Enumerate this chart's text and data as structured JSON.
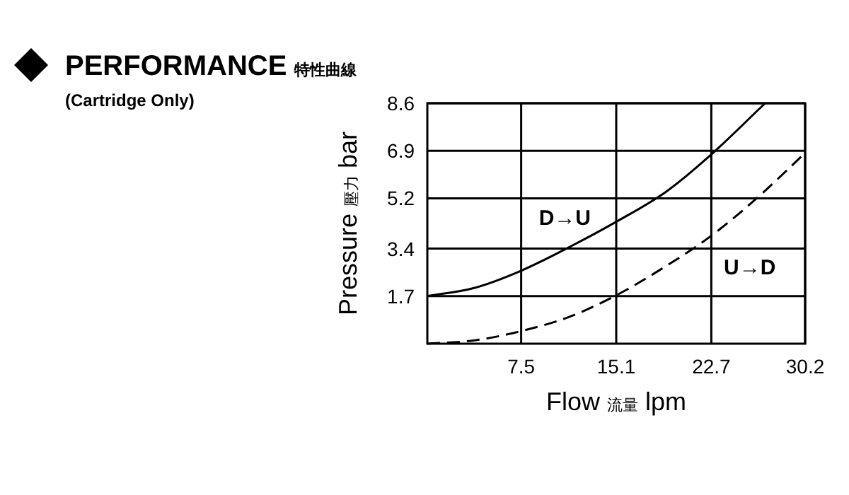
{
  "chart_data": {
    "type": "line",
    "title": "PERFORMANCE 特性曲線",
    "subtitle": "(Cartridge Only)",
    "xlabel": "Flow 流量 lpm",
    "ylabel": "Pressure 壓力 bar",
    "series": [
      {
        "name": "D→U",
        "color": "#000000",
        "line_style": "solid",
        "x": [
          0,
          3.8,
          7.5,
          11.5,
          15.1,
          19.1,
          22.7,
          27.0
        ],
        "values": [
          1.7,
          2.0,
          2.61,
          3.49,
          4.36,
          5.44,
          6.77,
          8.6
        ]
      },
      {
        "name": "U→D",
        "color": "#000000",
        "line_style": "dashed",
        "x": [
          0,
          3.8,
          7.5,
          11.3,
          15.1,
          19.1,
          22.7,
          26.5,
          30.2
        ],
        "values": [
          0,
          0.12,
          0.45,
          0.95,
          1.73,
          2.78,
          3.86,
          5.27,
          6.82
        ]
      }
    ],
    "xlim": [
      0,
      30.2
    ],
    "ylim": [
      0,
      8.6
    ],
    "xticks": [
      7.5,
      15.1,
      22.7,
      30.2
    ],
    "yticks": [
      1.7,
      3.4,
      5.2,
      6.9,
      8.6
    ],
    "grid": true,
    "marker": "none"
  }
}
